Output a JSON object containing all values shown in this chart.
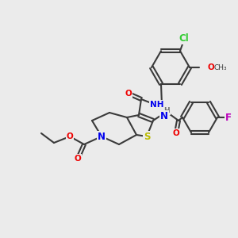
{
  "bg_color": "#ebebeb",
  "bond_color": "#3a3a3a",
  "bond_width": 1.5,
  "atom_colors": {
    "N": "#0000ee",
    "O": "#ee0000",
    "S": "#bbbb00",
    "Cl": "#33cc33",
    "F": "#bb00bb",
    "C": "#3a3a3a",
    "H": "#707070"
  },
  "font_size": 7.5,
  "fig_size": [
    3.0,
    3.0
  ],
  "dpi": 100
}
